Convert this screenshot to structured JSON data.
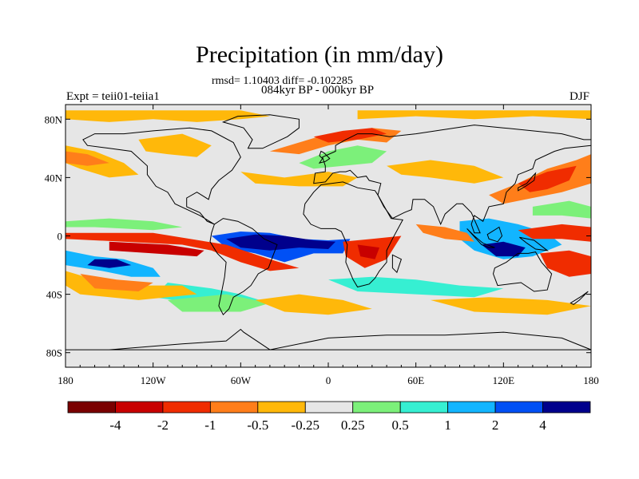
{
  "header": {
    "title": "Precipitation (in mm/day)",
    "stats": "rmsd= 1.10403 diff= -0.102285",
    "period": "084kyr BP - 000kyr BP",
    "experiment": "Expt = teii01-teiia1",
    "season": "DJF"
  },
  "colors": {
    "fill_levels": [
      "#7a0000",
      "#c80000",
      "#f02c00",
      "#ff7e1a",
      "#ffb80a",
      "#e6e6e6",
      "#7cf07a",
      "#36efd2",
      "#12b5ff",
      "#0050f5",
      "#00008c"
    ],
    "land_outline": "#000000"
  },
  "chart_data": {
    "type": "heatmap",
    "variable": "Precipitation difference",
    "units": "mm/day",
    "xlim": [
      -180,
      180
    ],
    "ylim": [
      -90,
      90
    ],
    "x_ticks": [
      {
        "value": -180,
        "label": "180"
      },
      {
        "value": -120,
        "label": "120W"
      },
      {
        "value": -60,
        "label": "60W"
      },
      {
        "value": 0,
        "label": "0"
      },
      {
        "value": 60,
        "label": "60E"
      },
      {
        "value": 120,
        "label": "120E"
      },
      {
        "value": 180,
        "label": "180"
      }
    ],
    "y_ticks": [
      {
        "value": 80,
        "label": "80N"
      },
      {
        "value": 40,
        "label": "40N"
      },
      {
        "value": 0,
        "label": "0"
      },
      {
        "value": -40,
        "label": "40S"
      },
      {
        "value": -80,
        "label": "80S"
      }
    ],
    "contour_levels": [
      -4,
      -2,
      -1,
      -0.5,
      -0.25,
      0.25,
      0.5,
      1,
      2,
      4
    ],
    "colorbar_labels": [
      "-4",
      "-2",
      "-1",
      "-0.5",
      "-0.25",
      "0.25",
      "0.5",
      "1",
      "2",
      "4"
    ],
    "regions": [
      {
        "level": 4,
        "lon": [
          -75,
          -45
        ],
        "lat": [
          -12,
          4
        ]
      },
      {
        "level": 4,
        "lon": [
          -35,
          5
        ],
        "lat": [
          -6,
          2
        ]
      },
      {
        "level": 3,
        "lon": [
          -150,
          -130
        ],
        "lat": [
          -18,
          -12
        ]
      },
      {
        "level": 3,
        "lon": [
          100,
          135
        ],
        "lat": [
          -14,
          0
        ]
      },
      {
        "level": 0,
        "lon": [
          -48,
          -25
        ],
        "lat": [
          -24,
          -12
        ]
      },
      {
        "level": 0,
        "lon": [
          15,
          50
        ],
        "lat": [
          -20,
          8
        ]
      },
      {
        "level": 0,
        "lon": [
          -20,
          40
        ],
        "lat": [
          50,
          70
        ]
      },
      {
        "level": 0,
        "lon": [
          140,
          170
        ],
        "lat": [
          8,
          30
        ]
      },
      {
        "level": 1,
        "lon": [
          -20,
          20
        ],
        "lat": [
          55,
          70
        ]
      },
      {
        "level": 1,
        "lon": [
          150,
          180
        ],
        "lat": [
          -20,
          -5
        ]
      },
      {
        "level": 1,
        "lon": [
          -180,
          -130
        ],
        "lat": [
          -8,
          2
        ]
      }
    ]
  },
  "annotations": []
}
